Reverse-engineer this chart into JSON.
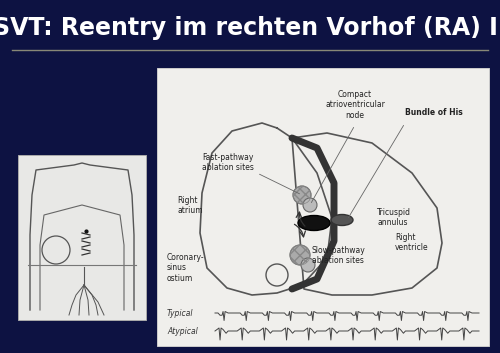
{
  "background_color": "#0d1242",
  "title": "SVT: Reentry im rechten Vorhof (RA) I.",
  "title_color": "#ffffff",
  "title_fontsize": 17,
  "separator_color": "#888877",
  "labels": {
    "compact_av": "Compact\natrioventricular\nnode",
    "bundle_his": "Bundle of His",
    "fast_pathway": "Fast-pathway\nablation sites",
    "right_atrium": "Right\natrium",
    "tricuspid": "Tricuspid\nannulus",
    "coronary": "Coronary-\nsinus\nostium",
    "slow_pathway": "Slow-pathway\nablation sites",
    "right_ventricle": "Right\nventricle",
    "typical": "Typical",
    "atypical": "Atypical"
  },
  "label_fontsize": 5.5,
  "ecg_color": "#444444",
  "panel_bg": "#f0efec",
  "left_panel_bg": "#e8e8e6"
}
